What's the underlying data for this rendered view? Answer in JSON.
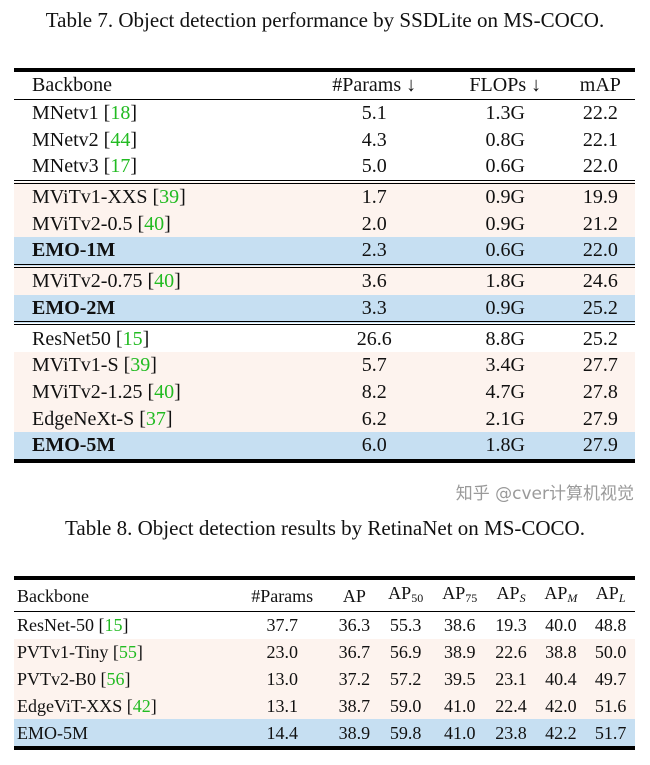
{
  "table7": {
    "caption": "Table 7. Object detection performance by SSDLite on MS-COCO.",
    "headers": [
      "Backbone",
      "#Params ↓",
      "FLOPs ↓",
      "mAP"
    ],
    "groups": [
      {
        "style": "plain",
        "rows": [
          {
            "name": "MNetv1",
            "ref": "18",
            "params": "5.1",
            "flops": "1.3G",
            "map": "22.2"
          },
          {
            "name": "MNetv2",
            "ref": "44",
            "params": "4.3",
            "flops": "0.8G",
            "map": "22.1"
          },
          {
            "name": "MNetv3",
            "ref": "17",
            "params": "5.0",
            "flops": "0.6G",
            "map": "22.0"
          }
        ]
      },
      {
        "style": "pink",
        "rows": [
          {
            "name": "MViTv1-XXS",
            "ref": "39",
            "params": "1.7",
            "flops": "0.9G",
            "map": "19.9"
          },
          {
            "name": "MViTv2-0.5",
            "ref": "40",
            "params": "2.0",
            "flops": "0.9G",
            "map": "21.2"
          },
          {
            "name": "EMO-1M",
            "ref": "",
            "params": "2.3",
            "flops": "0.6G",
            "map": "22.0",
            "highlight": true
          }
        ]
      },
      {
        "style": "pink",
        "rows": [
          {
            "name": "MViTv2-0.75",
            "ref": "40",
            "params": "3.6",
            "flops": "1.8G",
            "map": "24.6"
          },
          {
            "name": "EMO-2M",
            "ref": "",
            "params": "3.3",
            "flops": "0.9G",
            "map": "25.2",
            "highlight": true
          }
        ]
      },
      {
        "style": "mixed",
        "rows": [
          {
            "name": "ResNet50",
            "ref": "15",
            "params": "26.6",
            "flops": "8.8G",
            "map": "25.2",
            "plain": true
          },
          {
            "name": "MViTv1-S",
            "ref": "39",
            "params": "5.7",
            "flops": "3.4G",
            "map": "27.7"
          },
          {
            "name": "MViTv2-1.25",
            "ref": "40",
            "params": "8.2",
            "flops": "4.7G",
            "map": "27.8"
          },
          {
            "name": "EdgeNeXt-S",
            "ref": "37",
            "params": "6.2",
            "flops": "2.1G",
            "map": "27.9"
          },
          {
            "name": "EMO-5M",
            "ref": "",
            "params": "6.0",
            "flops": "1.8G",
            "map": "27.9",
            "highlight": true
          }
        ]
      }
    ]
  },
  "table8": {
    "caption": "Table 8. Object detection results by RetinaNet on MS-COCO.",
    "headers": [
      {
        "t": "Backbone"
      },
      {
        "t": "#Params"
      },
      {
        "t": "AP"
      },
      {
        "t": "AP",
        "s": "50"
      },
      {
        "t": "AP",
        "s": "75"
      },
      {
        "t": "AP",
        "s": "S",
        "i": true
      },
      {
        "t": "AP",
        "s": "M",
        "i": true
      },
      {
        "t": "AP",
        "s": "L",
        "i": true
      }
    ],
    "rows": [
      {
        "name": "ResNet-50",
        "ref": "15",
        "vals": [
          "37.7",
          "36.3",
          "55.3",
          "38.6",
          "19.3",
          "40.0",
          "48.8"
        ],
        "style": "plain"
      },
      {
        "name": "PVTv1-Tiny",
        "ref": "55",
        "vals": [
          "23.0",
          "36.7",
          "56.9",
          "38.9",
          "22.6",
          "38.8",
          "50.0"
        ],
        "style": "pink"
      },
      {
        "name": "PVTv2-B0",
        "ref": "56",
        "vals": [
          "13.0",
          "37.2",
          "57.2",
          "39.5",
          "23.1",
          "40.4",
          "49.7"
        ],
        "style": "pink"
      },
      {
        "name": "EdgeViT-XXS",
        "ref": "42",
        "vals": [
          "13.1",
          "38.7",
          "59.0",
          "41.0",
          "22.4",
          "42.0",
          "51.6"
        ],
        "style": "pink"
      },
      {
        "name": "EMO-5M",
        "ref": "",
        "vals": [
          "14.4",
          "38.9",
          "59.8",
          "41.0",
          "23.8",
          "42.2",
          "51.7"
        ],
        "style": "blue"
      }
    ]
  },
  "watermark": "知乎 @cver计算机视觉",
  "colors": {
    "ref": "#22bb22",
    "pink_row": "#fdf3ee",
    "blue_row": "#c6dff2"
  }
}
